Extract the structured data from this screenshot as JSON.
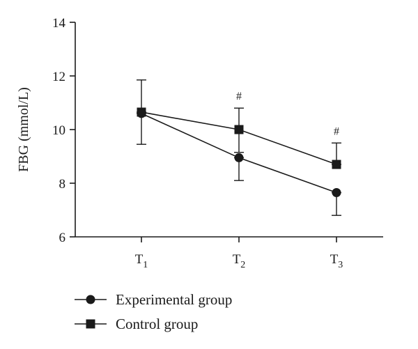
{
  "chart_data": {
    "type": "line",
    "title": "",
    "xlabel": "",
    "ylabel": "FBG (mmol/L)",
    "ylim": [
      6,
      14
    ],
    "yticks": [
      "6",
      "8",
      "10",
      "12",
      "14"
    ],
    "yticks_values": [
      6,
      8,
      10,
      12,
      14
    ],
    "categories": [
      {
        "base": "T",
        "sub": "1"
      },
      {
        "base": "T",
        "sub": "2"
      },
      {
        "base": "T",
        "sub": "3"
      }
    ],
    "series": [
      {
        "name": "Experimental group",
        "marker": "circle",
        "values": [
          10.6,
          8.95,
          7.65
        ],
        "error_low": [
          9.45,
          8.1,
          6.8
        ],
        "error_high": [
          10.6,
          8.95,
          7.65
        ]
      },
      {
        "name": "Control group",
        "marker": "square",
        "values": [
          10.65,
          10.0,
          8.7
        ],
        "error_low": [
          10.65,
          9.15,
          8.7
        ],
        "error_high": [
          11.85,
          10.8,
          9.5
        ]
      }
    ],
    "annotations": [
      {
        "category_index": 1,
        "text": "#",
        "above_value": 10.8
      },
      {
        "category_index": 2,
        "text": "#",
        "above_value": 9.5
      }
    ],
    "grid": false,
    "legend": "bottom-left"
  }
}
